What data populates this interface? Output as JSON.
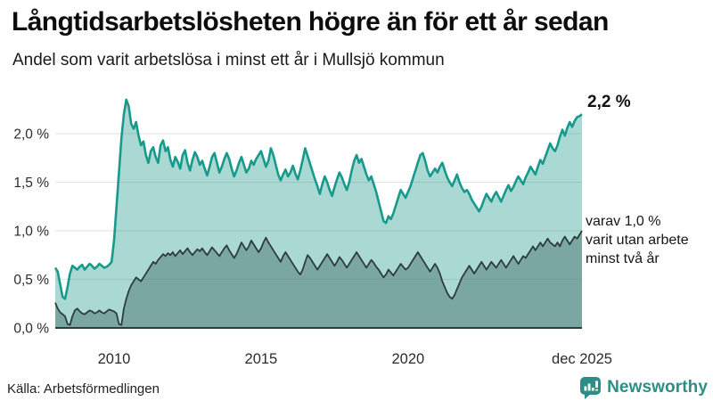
{
  "header": {
    "title": "Långtidsarbetslösheten högre än för ett år sedan",
    "subtitle": "Andel som varit arbetslösa i minst ett år i Mullsjö kommun"
  },
  "annotations": {
    "latest_total": "2,2 %",
    "secondary_line1": "varav 1,0 %",
    "secondary_line2": "varit utan arbete",
    "secondary_line3": "minst två år"
  },
  "footer": {
    "source": "Källa: Arbetsförmedlingen",
    "brand_name": "Newsworthy"
  },
  "colors": {
    "total_line": "#179a8c",
    "total_fill": "#aad8d2",
    "two_year_line": "#2d3c3b",
    "two_year_fill": "#7aa7a1",
    "gridline": "rgba(120,120,120,0.22)",
    "axis_line": "#2d3c3b",
    "tick_text": "#2b2b2b",
    "brand_teal": "#2b8f86"
  },
  "chart_data": {
    "type": "area",
    "unit": "%",
    "x_start": "2008-01",
    "x_end": "2025-12",
    "x_step": "month",
    "ylim": [
      0,
      2.45
    ],
    "grid": true,
    "y_ticks": [
      {
        "value": 0.0,
        "label": "0,0 %"
      },
      {
        "value": 0.5,
        "label": "0,5 %"
      },
      {
        "value": 1.0,
        "label": "1,0 %"
      },
      {
        "value": 1.5,
        "label": "1,5 %"
      },
      {
        "value": 2.0,
        "label": "2,0 %"
      }
    ],
    "x_ticks": [
      {
        "year": 2010.0,
        "label": "2010"
      },
      {
        "year": 2015.0,
        "label": "2015"
      },
      {
        "year": 2020.0,
        "label": "2020"
      },
      {
        "year": 2025.9167,
        "label": "dec 2025"
      }
    ],
    "series": [
      {
        "name": "Andel arbetslösa minst ett år",
        "latest_value": 2.2,
        "values": [
          0.62,
          0.58,
          0.45,
          0.32,
          0.3,
          0.42,
          0.56,
          0.64,
          0.62,
          0.6,
          0.63,
          0.65,
          0.6,
          0.63,
          0.66,
          0.64,
          0.61,
          0.63,
          0.66,
          0.64,
          0.62,
          0.63,
          0.65,
          0.68,
          0.9,
          1.25,
          1.6,
          1.95,
          2.2,
          2.35,
          2.28,
          2.1,
          2.05,
          2.12,
          1.98,
          1.88,
          1.92,
          1.78,
          1.7,
          1.82,
          1.86,
          1.76,
          1.7,
          1.88,
          1.93,
          1.82,
          1.86,
          1.73,
          1.66,
          1.76,
          1.71,
          1.64,
          1.78,
          1.83,
          1.7,
          1.62,
          1.73,
          1.81,
          1.76,
          1.68,
          1.72,
          1.64,
          1.57,
          1.66,
          1.76,
          1.8,
          1.7,
          1.6,
          1.66,
          1.74,
          1.8,
          1.74,
          1.64,
          1.56,
          1.62,
          1.7,
          1.76,
          1.68,
          1.6,
          1.64,
          1.72,
          1.68,
          1.74,
          1.78,
          1.82,
          1.74,
          1.66,
          1.72,
          1.85,
          1.78,
          1.68,
          1.58,
          1.52,
          1.58,
          1.63,
          1.56,
          1.6,
          1.67,
          1.59,
          1.53,
          1.62,
          1.73,
          1.85,
          1.77,
          1.69,
          1.61,
          1.53,
          1.46,
          1.38,
          1.48,
          1.56,
          1.5,
          1.42,
          1.36,
          1.45,
          1.53,
          1.6,
          1.55,
          1.48,
          1.42,
          1.5,
          1.62,
          1.72,
          1.78,
          1.7,
          1.74,
          1.66,
          1.58,
          1.52,
          1.56,
          1.48,
          1.4,
          1.3,
          1.2,
          1.1,
          1.08,
          1.15,
          1.12,
          1.18,
          1.26,
          1.34,
          1.42,
          1.38,
          1.34,
          1.4,
          1.46,
          1.54,
          1.62,
          1.7,
          1.78,
          1.8,
          1.72,
          1.62,
          1.56,
          1.6,
          1.64,
          1.6,
          1.66,
          1.7,
          1.62,
          1.55,
          1.5,
          1.46,
          1.52,
          1.58,
          1.5,
          1.44,
          1.4,
          1.42,
          1.38,
          1.32,
          1.28,
          1.24,
          1.2,
          1.25,
          1.32,
          1.38,
          1.34,
          1.3,
          1.36,
          1.4,
          1.35,
          1.3,
          1.36,
          1.42,
          1.47,
          1.41,
          1.45,
          1.51,
          1.56,
          1.52,
          1.48,
          1.55,
          1.6,
          1.66,
          1.62,
          1.58,
          1.66,
          1.73,
          1.69,
          1.76,
          1.83,
          1.9,
          1.85,
          1.82,
          1.88,
          1.97,
          2.04,
          1.98,
          2.06,
          2.12,
          2.07,
          2.13,
          2.17,
          2.18,
          2.2
        ]
      },
      {
        "name": "varav utan arbete minst två år",
        "latest_value": 1.0,
        "values": [
          0.26,
          0.2,
          0.16,
          0.14,
          0.12,
          0.04,
          0.03,
          0.12,
          0.18,
          0.2,
          0.17,
          0.15,
          0.14,
          0.16,
          0.18,
          0.17,
          0.15,
          0.16,
          0.18,
          0.16,
          0.15,
          0.17,
          0.19,
          0.18,
          0.17,
          0.15,
          0.04,
          0.03,
          0.2,
          0.3,
          0.38,
          0.44,
          0.48,
          0.52,
          0.5,
          0.48,
          0.52,
          0.56,
          0.6,
          0.64,
          0.68,
          0.66,
          0.7,
          0.73,
          0.76,
          0.74,
          0.77,
          0.75,
          0.78,
          0.74,
          0.77,
          0.8,
          0.76,
          0.79,
          0.82,
          0.78,
          0.75,
          0.78,
          0.81,
          0.79,
          0.82,
          0.78,
          0.75,
          0.79,
          0.83,
          0.8,
          0.77,
          0.74,
          0.78,
          0.82,
          0.85,
          0.8,
          0.76,
          0.72,
          0.76,
          0.82,
          0.88,
          0.84,
          0.8,
          0.84,
          0.9,
          0.86,
          0.82,
          0.78,
          0.82,
          0.88,
          0.93,
          0.88,
          0.84,
          0.8,
          0.76,
          0.72,
          0.68,
          0.74,
          0.78,
          0.74,
          0.7,
          0.66,
          0.62,
          0.58,
          0.55,
          0.6,
          0.68,
          0.75,
          0.72,
          0.68,
          0.64,
          0.6,
          0.64,
          0.68,
          0.72,
          0.76,
          0.72,
          0.68,
          0.64,
          0.68,
          0.73,
          0.7,
          0.66,
          0.62,
          0.66,
          0.7,
          0.74,
          0.78,
          0.74,
          0.7,
          0.66,
          0.62,
          0.66,
          0.7,
          0.67,
          0.63,
          0.6,
          0.56,
          0.52,
          0.55,
          0.6,
          0.57,
          0.54,
          0.58,
          0.62,
          0.66,
          0.63,
          0.6,
          0.62,
          0.66,
          0.7,
          0.74,
          0.78,
          0.74,
          0.7,
          0.66,
          0.62,
          0.58,
          0.62,
          0.66,
          0.62,
          0.56,
          0.48,
          0.42,
          0.36,
          0.32,
          0.3,
          0.34,
          0.4,
          0.46,
          0.52,
          0.56,
          0.6,
          0.64,
          0.6,
          0.56,
          0.6,
          0.64,
          0.68,
          0.64,
          0.6,
          0.64,
          0.68,
          0.65,
          0.62,
          0.66,
          0.7,
          0.66,
          0.62,
          0.66,
          0.7,
          0.74,
          0.7,
          0.66,
          0.7,
          0.74,
          0.72,
          0.76,
          0.8,
          0.84,
          0.8,
          0.84,
          0.88,
          0.84,
          0.88,
          0.92,
          0.88,
          0.86,
          0.84,
          0.88,
          0.84,
          0.9,
          0.94,
          0.9,
          0.86,
          0.9,
          0.94,
          0.92,
          0.96,
          1.0
        ]
      }
    ]
  }
}
